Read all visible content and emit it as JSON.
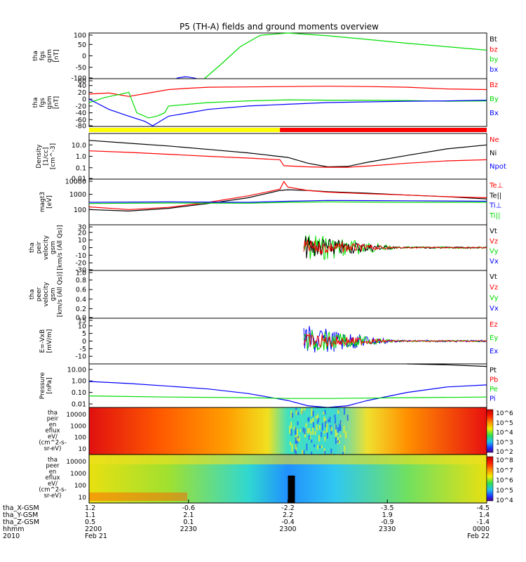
{
  "title": "P5 (TH-A) fields and ground moments overview",
  "colors": {
    "black": "#000000",
    "red": "#ff0000",
    "green": "#00dd00",
    "blue": "#0000ff",
    "yellow": "#ffff00"
  },
  "chart_data": {
    "type": "line",
    "panels": [
      {
        "id": "fgs-gsm",
        "ylabel": [
          "tha",
          "fgs",
          "gsm",
          "[nT]"
        ],
        "ylim": [
          -100,
          100
        ],
        "yticks": [
          "100",
          "50",
          "0",
          "-50",
          "-100"
        ],
        "legend": [
          "Bt",
          "bz",
          "by",
          "bx"
        ],
        "series": [
          {
            "name": "by",
            "color": "green",
            "t": [
              0.29,
              0.33,
              0.38,
              0.43,
              0.5,
              0.6,
              0.7,
              0.8,
              0.9,
              1.0
            ],
            "v": [
              -100,
              -40,
              40,
              90,
              108,
              88,
              72,
              55,
              40,
              25
            ]
          },
          {
            "name": "bx",
            "color": "blue",
            "t": [
              0.22,
              0.24,
              0.25,
              0.27
            ],
            "v": [
              -98,
              -92,
              -93,
              -99
            ]
          }
        ]
      },
      {
        "id": "fgs-gsm-zoom",
        "ylabel": [
          "tha",
          "fgs",
          "gsm",
          "[nT]"
        ],
        "ylim": [
          -80,
          60
        ],
        "yticks": [
          "60",
          "40",
          "20",
          "0",
          "-20",
          "-40",
          "-60",
          "-80"
        ],
        "legend": [
          "Bz",
          "By",
          "Bx"
        ],
        "series": [
          {
            "name": "Bz",
            "color": "red",
            "t": [
              0,
              0.05,
              0.1,
              0.15,
              0.2,
              0.25,
              0.3,
              0.4,
              0.5,
              0.6,
              0.7,
              0.8,
              0.9,
              1.0
            ],
            "v": [
              15,
              18,
              8,
              18,
              28,
              32,
              35,
              36,
              37,
              38,
              37,
              35,
              30,
              28
            ]
          },
          {
            "name": "By",
            "color": "green",
            "t": [
              0,
              0.04,
              0.08,
              0.1,
              0.12,
              0.15,
              0.17,
              0.19,
              0.2,
              0.25,
              0.3,
              0.4,
              0.5,
              0.6,
              0.7,
              0.8,
              0.9,
              1.0
            ],
            "v": [
              -10,
              5,
              15,
              20,
              -40,
              -55,
              -50,
              -40,
              -20,
              -15,
              -10,
              -5,
              -2,
              -3,
              -3,
              -4,
              -6,
              -5
            ]
          },
          {
            "name": "Bx",
            "color": "blue",
            "t": [
              0,
              0.05,
              0.1,
              0.14,
              0.16,
              0.2,
              0.25,
              0.3,
              0.4,
              0.5,
              0.6,
              0.7,
              0.8,
              0.9,
              1.0
            ],
            "v": [
              0,
              -30,
              -50,
              -65,
              -78,
              -50,
              -40,
              -30,
              -20,
              -15,
              -10,
              -8,
              -6,
              -5,
              -3
            ]
          }
        ]
      },
      {
        "id": "mode-bar",
        "ylabel": [],
        "segments": [
          {
            "t0": 0.0,
            "t1": 0.48,
            "color": "yellow"
          },
          {
            "t0": 0.48,
            "t1": 1.0,
            "color": "red"
          }
        ]
      },
      {
        "id": "density",
        "ylabel": [
          "Density",
          "[1/cc]",
          "[cm^-3]"
        ],
        "ylog": true,
        "ylim": [
          0.01,
          100
        ],
        "yticks": [
          "10.0",
          "1.0",
          "0.1",
          "0.01"
        ],
        "legend": [
          "Ne",
          "Ni",
          "Npot"
        ],
        "series": [
          {
            "name": "Ni",
            "color": "black",
            "t": [
              0,
              0.1,
              0.2,
              0.3,
              0.4,
              0.5,
              0.55,
              0.6,
              0.65,
              0.7,
              0.8,
              0.9,
              1.0
            ],
            "v": [
              25,
              14,
              8,
              4,
              2,
              0.8,
              0.25,
              0.12,
              0.13,
              0.3,
              1.2,
              4.5,
              10
            ]
          },
          {
            "name": "Ne",
            "color": "red",
            "t": [
              0,
              0.1,
              0.2,
              0.3,
              0.4,
              0.48,
              0.49,
              0.55,
              0.6,
              0.65,
              0.7,
              0.8,
              0.9,
              1.0
            ],
            "v": [
              3,
              2.2,
              1.5,
              1,
              0.7,
              0.5,
              0.15,
              0.12,
              0.11,
              0.11,
              0.14,
              0.25,
              0.4,
              0.5
            ]
          }
        ]
      },
      {
        "id": "temperature",
        "ylabel": [
          "magt3",
          "[eV]"
        ],
        "ylog": true,
        "ylim": [
          10,
          10000
        ],
        "yticks": [
          "10000",
          "1000",
          "100"
        ],
        "legend": [
          "Te⊥",
          "Te||",
          "Ti⊥",
          "Ti||"
        ],
        "series": [
          {
            "name": "Te||",
            "color": "black",
            "t": [
              0,
              0.1,
              0.2,
              0.3,
              0.4,
              0.45,
              0.48,
              0.5,
              0.55,
              0.6,
              0.7,
              0.8,
              0.9,
              1.0
            ],
            "v": [
              100,
              80,
              120,
              250,
              600,
              1200,
              1800,
              2000,
              1800,
              1500,
              1200,
              900,
              700,
              500
            ]
          },
          {
            "name": "Te⊥",
            "color": "red",
            "t": [
              0,
              0.1,
              0.2,
              0.3,
              0.4,
              0.45,
              0.48,
              0.49,
              0.5,
              0.55,
              0.6,
              0.7,
              0.8,
              0.9,
              1.0
            ],
            "v": [
              150,
              100,
              140,
              300,
              800,
              1500,
              2200,
              7000,
              3000,
              1800,
              1400,
              1100,
              900,
              700,
              600
            ]
          },
          {
            "name": "Ti⊥",
            "color": "blue",
            "t": [
              0,
              0.2,
              0.4,
              0.5,
              0.6,
              0.8,
              1.0
            ],
            "v": [
              300,
              320,
              300,
              350,
              400,
              380,
              350
            ]
          },
          {
            "name": "Ti||",
            "color": "green",
            "t": [
              0,
              0.2,
              0.4,
              0.5,
              0.6,
              0.8,
              1.0
            ],
            "v": [
              250,
              270,
              260,
              300,
              320,
              300,
              300
            ]
          }
        ]
      },
      {
        "id": "peir-velocity",
        "ylabel": [
          "tha",
          "peir",
          "velocity",
          "gsm",
          "[km/s (All Qs)]"
        ],
        "ylim": [
          -30,
          30
        ],
        "yticks": [
          "30",
          "20",
          "10",
          "0",
          "-10",
          "-20",
          "-30"
        ],
        "legend": [
          "Vt",
          "Vz",
          "Vy",
          "Vx"
        ]
      },
      {
        "id": "peer-velocity",
        "ylabel": [
          "tha",
          "peer",
          "velocity",
          "gsm",
          "[km/s (All Qs)]"
        ],
        "ylim": [
          0,
          1
        ],
        "yticks": [
          "1.0",
          "0.8",
          "0.6",
          "0.4",
          "0.2",
          "0.0"
        ],
        "legend": [
          "Vt",
          "Vz",
          "Vy",
          "Vx"
        ]
      },
      {
        "id": "efield",
        "ylabel": [
          "E=-VxB",
          "[mV/m]"
        ],
        "ylim": [
          -15,
          15
        ],
        "yticks": [
          "15",
          "10",
          "5",
          "0",
          "-5",
          "-10"
        ],
        "legend": [
          "Ez",
          "Ey",
          "Ex"
        ]
      },
      {
        "id": "pressure",
        "ylabel": [
          "Pressure",
          "[nPa]"
        ],
        "ylog": true,
        "ylim": [
          0.005,
          30
        ],
        "yticks": [
          "10.00",
          "1.00",
          "0.10",
          "0.01"
        ],
        "legend": [
          "Pt",
          "Pb",
          "Pe",
          "Pi"
        ],
        "series": [
          {
            "name": "Pi",
            "color": "blue",
            "t": [
              0,
              0.1,
              0.2,
              0.3,
              0.4,
              0.5,
              0.55,
              0.6,
              0.65,
              0.7,
              0.8,
              0.9,
              1.0
            ],
            "v": [
              0.9,
              0.6,
              0.35,
              0.2,
              0.08,
              0.02,
              0.007,
              0.005,
              0.007,
              0.02,
              0.1,
              0.3,
              0.45
            ]
          },
          {
            "name": "Pe",
            "color": "green",
            "t": [
              0,
              0.2,
              0.4,
              0.5,
              0.6,
              0.8,
              1.0
            ],
            "v": [
              0.05,
              0.04,
              0.035,
              0.03,
              0.03,
              0.035,
              0.04
            ]
          },
          {
            "name": "Pt",
            "color": "black",
            "t": [
              0.8,
              0.9,
              1.0
            ],
            "v": [
              30,
              25,
              18
            ]
          }
        ]
      },
      {
        "id": "peir-spec",
        "type": "heatmap",
        "ylabel": [
          "tha",
          "peir",
          "en",
          "eflux",
          "eV/",
          "(cm^2-s-",
          "sr-eV)"
        ],
        "ylog": true,
        "yticks": [
          "10000",
          "1000",
          "100",
          "10"
        ],
        "colorbar_ticks": [
          "10^6",
          "10^5",
          "10^4",
          "10^3",
          "10^2"
        ]
      },
      {
        "id": "peer-spec",
        "type": "heatmap",
        "ylabel": [
          "tha",
          "peer",
          "en",
          "eflux",
          "eV/",
          "(cm^2-s-",
          "sr-eV)"
        ],
        "ylog": true,
        "yticks": [
          "10000",
          "1000",
          "100",
          "10"
        ],
        "colorbar_ticks": [
          "10^8",
          "10^7",
          "10^6",
          "10^5",
          "10^4"
        ]
      }
    ],
    "x_axis": {
      "rows": [
        {
          "label": "tha_X-GSM",
          "values": [
            "1.2",
            "-0.6",
            "-2.2",
            "-3.5",
            "-4.5"
          ]
        },
        {
          "label": "tha_Y-GSM",
          "values": [
            "1.1",
            "2.1",
            "2.2",
            "1.9",
            "1.4"
          ]
        },
        {
          "label": "tha_Z-GSM",
          "values": [
            "0.5",
            "0.1",
            "-0.4",
            "-0.9",
            "-1.4"
          ]
        },
        {
          "label": "hhmm",
          "values": [
            "2200",
            "2230",
            "2300",
            "2330",
            "0000"
          ]
        },
        {
          "label": "2010",
          "values": [
            "Feb 21",
            "",
            "",
            "",
            "Feb 22"
          ]
        }
      ],
      "tick_positions": [
        0,
        0.25,
        0.5,
        0.75,
        1.0
      ]
    }
  }
}
